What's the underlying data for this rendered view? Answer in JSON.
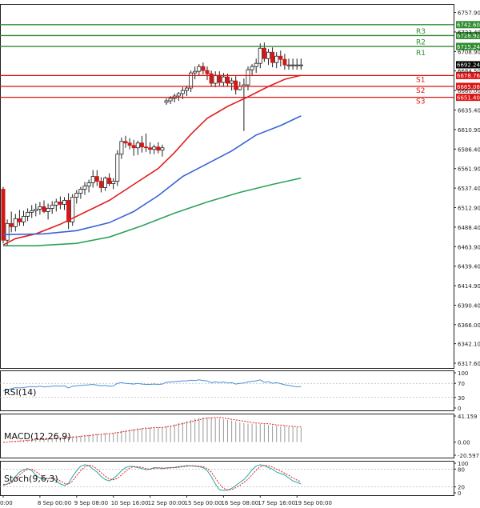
{
  "chart_data": {
    "type": "candlestick",
    "price_axis": {
      "min": 6317.6,
      "max": 6767.5,
      "ticks": [
        6757.9,
        6733.4,
        6708.9,
        6684.5,
        6660.0,
        6635.4,
        6610.9,
        6586.4,
        6561.9,
        6537.4,
        6512.9,
        6488.4,
        6463.9,
        6439.4,
        6414.9,
        6390.4,
        6366.0,
        6342.1,
        6317.6
      ],
      "tick_labels": [
        "6757.90",
        "6733.40",
        "6708.90",
        "6684.50",
        "6660.00",
        "6635.40",
        "6610.90",
        "6586.40",
        "6561.90",
        "6537.40",
        "6512.90",
        "6488.40",
        "6463.90",
        "6439.40",
        "6414.90",
        "6390.40",
        "6366.00",
        "6342.10",
        "6317.60"
      ]
    },
    "time_axis": {
      "labels": [
        "0:00",
        "8 Sep 00:00",
        "9 Sep 08:00",
        "10 Sep 16:00",
        "12 Sep 00:00",
        "15 Sep 00:00",
        "16 Sep 08:00",
        "17 Sep 16:00",
        "19 Sep 00:00"
      ],
      "bar_index": [
        0,
        9,
        18,
        27,
        36,
        45,
        54,
        63,
        72
      ],
      "total_bars": 74
    },
    "levels": [
      {
        "name": "R3",
        "value": 6742.6,
        "label": "6742.60",
        "color": "#2e8b2e"
      },
      {
        "name": "R2",
        "value": 6728.92,
        "label": "6728.92",
        "color": "#2e8b2e"
      },
      {
        "name": "R1",
        "value": 6715.24,
        "label": "6715.24",
        "color": "#2e8b2e"
      },
      {
        "name": "S1",
        "value": 6678.76,
        "label": "6678.76",
        "color": "#dd1111"
      },
      {
        "name": "S2",
        "value": 6665.08,
        "label": "6665.08",
        "color": "#dd1111"
      },
      {
        "name": "S3",
        "value": 6651.4,
        "label": "6651.40",
        "color": "#dd1111"
      }
    ],
    "current_price": {
      "value": 6692.24,
      "label": "6692.24"
    },
    "candles": [
      [
        6536,
        6539,
        6468,
        6472
      ],
      [
        6472,
        6498,
        6465,
        6493
      ],
      [
        6493,
        6508,
        6482,
        6489
      ],
      [
        6489,
        6505,
        6483,
        6499
      ],
      [
        6499,
        6510,
        6490,
        6495
      ],
      [
        6495,
        6509,
        6490,
        6502
      ],
      [
        6502,
        6512,
        6496,
        6507
      ],
      [
        6507,
        6516,
        6500,
        6509
      ],
      [
        6509,
        6518,
        6502,
        6511
      ],
      [
        6511,
        6520,
        6504,
        6514
      ],
      [
        6514,
        6522,
        6506,
        6508
      ],
      [
        6508,
        6518,
        6498,
        6512
      ],
      [
        6512,
        6521,
        6505,
        6516
      ],
      [
        6516,
        6524,
        6508,
        6520
      ],
      [
        6520,
        6527,
        6511,
        6517
      ],
      [
        6517,
        6526,
        6510,
        6522
      ],
      [
        6522,
        6531,
        6486,
        6495
      ],
      [
        6495,
        6530,
        6490,
        6526
      ],
      [
        6526,
        6535,
        6518,
        6531
      ],
      [
        6531,
        6539,
        6524,
        6536
      ],
      [
        6536,
        6545,
        6529,
        6540
      ],
      [
        6540,
        6548,
        6532,
        6544
      ],
      [
        6544,
        6560,
        6538,
        6552
      ],
      [
        6552,
        6560,
        6540,
        6546
      ],
      [
        6546,
        6551,
        6532,
        6538
      ],
      [
        6538,
        6552,
        6534,
        6550
      ],
      [
        6550,
        6556,
        6540,
        6543
      ],
      [
        6543,
        6550,
        6536,
        6546
      ],
      [
        6546,
        6585,
        6540,
        6580
      ],
      [
        6580,
        6601,
        6574,
        6596
      ],
      [
        6596,
        6603,
        6588,
        6594
      ],
      [
        6594,
        6600,
        6586,
        6591
      ],
      [
        6591,
        6598,
        6578,
        6588
      ],
      [
        6588,
        6597,
        6579,
        6594
      ],
      [
        6594,
        6603,
        6582,
        6589
      ],
      [
        6589,
        6606,
        6583,
        6588
      ],
      [
        6588,
        6595,
        6580,
        6586
      ],
      [
        6586,
        6592,
        6580,
        6589
      ],
      [
        6589,
        6595,
        6581,
        6585
      ],
      [
        6585,
        6592,
        6577,
        6588
      ],
      [
        6645,
        6650,
        6642,
        6647
      ],
      [
        6647,
        6653,
        6643,
        6650
      ],
      [
        6650,
        6656,
        6645,
        6653
      ],
      [
        6653,
        6658,
        6647,
        6656
      ],
      [
        6656,
        6664,
        6649,
        6660
      ],
      [
        6660,
        6666,
        6653,
        6663
      ],
      [
        6663,
        6685,
        6658,
        6682
      ],
      [
        6682,
        6690,
        6674,
        6684
      ],
      [
        6684,
        6693,
        6678,
        6690
      ],
      [
        6690,
        6695,
        6680,
        6685
      ],
      [
        6685,
        6690,
        6673,
        6681
      ],
      [
        6681,
        6685,
        6665,
        6669
      ],
      [
        6669,
        6684,
        6664,
        6679
      ],
      [
        6679,
        6684,
        6666,
        6670
      ],
      [
        6670,
        6682,
        6665,
        6677
      ],
      [
        6677,
        6681,
        6665,
        6669
      ],
      [
        6669,
        6676,
        6660,
        6672
      ],
      [
        6672,
        6678,
        6655,
        6661
      ],
      [
        6661,
        6671,
        6660,
        6665
      ],
      [
        6665,
        6675,
        6609,
        6667
      ],
      [
        6667,
        6690,
        6660,
        6686
      ],
      [
        6686,
        6693,
        6678,
        6690
      ],
      [
        6690,
        6700,
        6682,
        6694
      ],
      [
        6694,
        6719,
        6688,
        6713
      ],
      [
        6713,
        6720,
        6696,
        6700
      ],
      [
        6700,
        6712,
        6692,
        6708
      ],
      [
        6708,
        6714,
        6689,
        6695
      ],
      [
        6695,
        6708,
        6688,
        6703
      ],
      [
        6703,
        6710,
        6690,
        6699
      ],
      [
        6699,
        6706,
        6686,
        6692
      ],
      [
        6692,
        6700,
        6686,
        6692
      ],
      [
        6692,
        6700,
        6686,
        6692
      ],
      [
        6692,
        6700,
        6686,
        6692
      ],
      [
        6692,
        6700,
        6686,
        6692
      ]
    ],
    "moving_averages": [
      {
        "name": "MA fast",
        "color": "#e02020",
        "points": [
          [
            0,
            6466
          ],
          [
            3,
            6474
          ],
          [
            8,
            6480
          ],
          [
            14,
            6492
          ],
          [
            20,
            6507
          ],
          [
            26,
            6522
          ],
          [
            32,
            6542
          ],
          [
            38,
            6562
          ],
          [
            42,
            6582
          ],
          [
            46,
            6605
          ],
          [
            50,
            6625
          ],
          [
            55,
            6640
          ],
          [
            60,
            6652
          ],
          [
            65,
            6665
          ],
          [
            69,
            6674
          ],
          [
            73,
            6679
          ]
        ]
      },
      {
        "name": "MA mid",
        "color": "#3a62d6",
        "points": [
          [
            0,
            6479
          ],
          [
            10,
            6480
          ],
          [
            18,
            6484
          ],
          [
            26,
            6494
          ],
          [
            32,
            6508
          ],
          [
            38,
            6528
          ],
          [
            44,
            6552
          ],
          [
            50,
            6568
          ],
          [
            56,
            6584
          ],
          [
            62,
            6604
          ],
          [
            68,
            6616
          ],
          [
            73,
            6628
          ]
        ]
      },
      {
        "name": "MA slow",
        "color": "#2fa15a",
        "points": [
          [
            0,
            6465
          ],
          [
            8,
            6465
          ],
          [
            18,
            6468
          ],
          [
            26,
            6476
          ],
          [
            34,
            6490
          ],
          [
            42,
            6506
          ],
          [
            50,
            6520
          ],
          [
            58,
            6532
          ],
          [
            66,
            6542
          ],
          [
            73,
            6550
          ]
        ]
      }
    ],
    "indicators": [
      {
        "name": "RSI",
        "label": "RSI(14)",
        "axis_labels": [
          "100",
          "70",
          "30",
          "0"
        ],
        "levels": [
          100,
          70,
          30,
          0
        ],
        "values": [
          48,
          52,
          55,
          58,
          57,
          58,
          60,
          61,
          60,
          62,
          60,
          61,
          62,
          63,
          62,
          63,
          57,
          62,
          63,
          64,
          65,
          66,
          67,
          65,
          63,
          64,
          62,
          63,
          70,
          72,
          70,
          69,
          68,
          70,
          68,
          67,
          67,
          68,
          67,
          68,
          73,
          74,
          75,
          76,
          77,
          77,
          79,
          78,
          80,
          78,
          77,
          72,
          74,
          72,
          74,
          71,
          72,
          68,
          70,
          71,
          74,
          76,
          77,
          80,
          73,
          75,
          70,
          72,
          69,
          66,
          64,
          62,
          60,
          61
        ]
      },
      {
        "name": "MACD",
        "label": "MACD(12,26,9)",
        "axis_labels": [
          "41.159",
          "0.00",
          "-20.597"
        ],
        "range": [
          -20.597,
          41.159
        ],
        "histogram": [
          0,
          0,
          1,
          2,
          2,
          3,
          3,
          4,
          4,
          5,
          5,
          5,
          6,
          7,
          7,
          8,
          8,
          9,
          10,
          10,
          11,
          12,
          13,
          13,
          13,
          14,
          14,
          14,
          16,
          18,
          19,
          20,
          21,
          22,
          22,
          23,
          23,
          23,
          23,
          23,
          25,
          26,
          28,
          30,
          31,
          33,
          35,
          37,
          38,
          39,
          39,
          39,
          38,
          37,
          36,
          35,
          34,
          33,
          31,
          30,
          29,
          29,
          28,
          29,
          28,
          27,
          26,
          26,
          25,
          25,
          24,
          24,
          23,
          23
        ],
        "signal": [
          0,
          0,
          1,
          1,
          2,
          2,
          3,
          3,
          4,
          4,
          4,
          5,
          5,
          6,
          6,
          7,
          7,
          8,
          8,
          9,
          10,
          10,
          11,
          12,
          12,
          13,
          13,
          14,
          15,
          16,
          17,
          18,
          19,
          20,
          21,
          22,
          22,
          23,
          23,
          23,
          24,
          25,
          26,
          28,
          29,
          31,
          32,
          34,
          35,
          37,
          38,
          38,
          39,
          39,
          38,
          37,
          36,
          35,
          34,
          33,
          32,
          31,
          30,
          30,
          29,
          29,
          28,
          27,
          27,
          26,
          25,
          25,
          24,
          24
        ]
      },
      {
        "name": "Stoch",
        "label": "Stoch(9,6,3)",
        "axis_labels": [
          "100",
          "80",
          "20",
          "0"
        ],
        "levels": [
          100,
          80,
          20,
          0
        ],
        "k": [
          25,
          30,
          38,
          55,
          70,
          78,
          82,
          75,
          60,
          50,
          45,
          48,
          52,
          40,
          30,
          25,
          32,
          55,
          75,
          90,
          95,
          92,
          80,
          70,
          55,
          45,
          40,
          48,
          60,
          75,
          85,
          90,
          88,
          85,
          82,
          78,
          80,
          85,
          84,
          82,
          84,
          85,
          86,
          88,
          90,
          92,
          91,
          90,
          88,
          85,
          75,
          55,
          30,
          10,
          8,
          9,
          15,
          25,
          35,
          45,
          60,
          78,
          90,
          95,
          92,
          85,
          80,
          70,
          65,
          60,
          50,
          40,
          35,
          30
        ],
        "d": [
          28,
          29,
          33,
          45,
          60,
          72,
          79,
          80,
          72,
          62,
          52,
          47,
          49,
          47,
          40,
          32,
          29,
          40,
          58,
          75,
          88,
          93,
          90,
          80,
          68,
          56,
          47,
          44,
          49,
          60,
          73,
          84,
          89,
          88,
          86,
          82,
          80,
          82,
          84,
          84,
          83,
          84,
          85,
          86,
          88,
          90,
          91,
          91,
          90,
          88,
          82,
          70,
          50,
          30,
          15,
          10,
          11,
          17,
          25,
          35,
          46,
          61,
          76,
          88,
          93,
          91,
          87,
          80,
          73,
          66,
          59,
          50,
          43,
          37
        ]
      }
    ]
  }
}
